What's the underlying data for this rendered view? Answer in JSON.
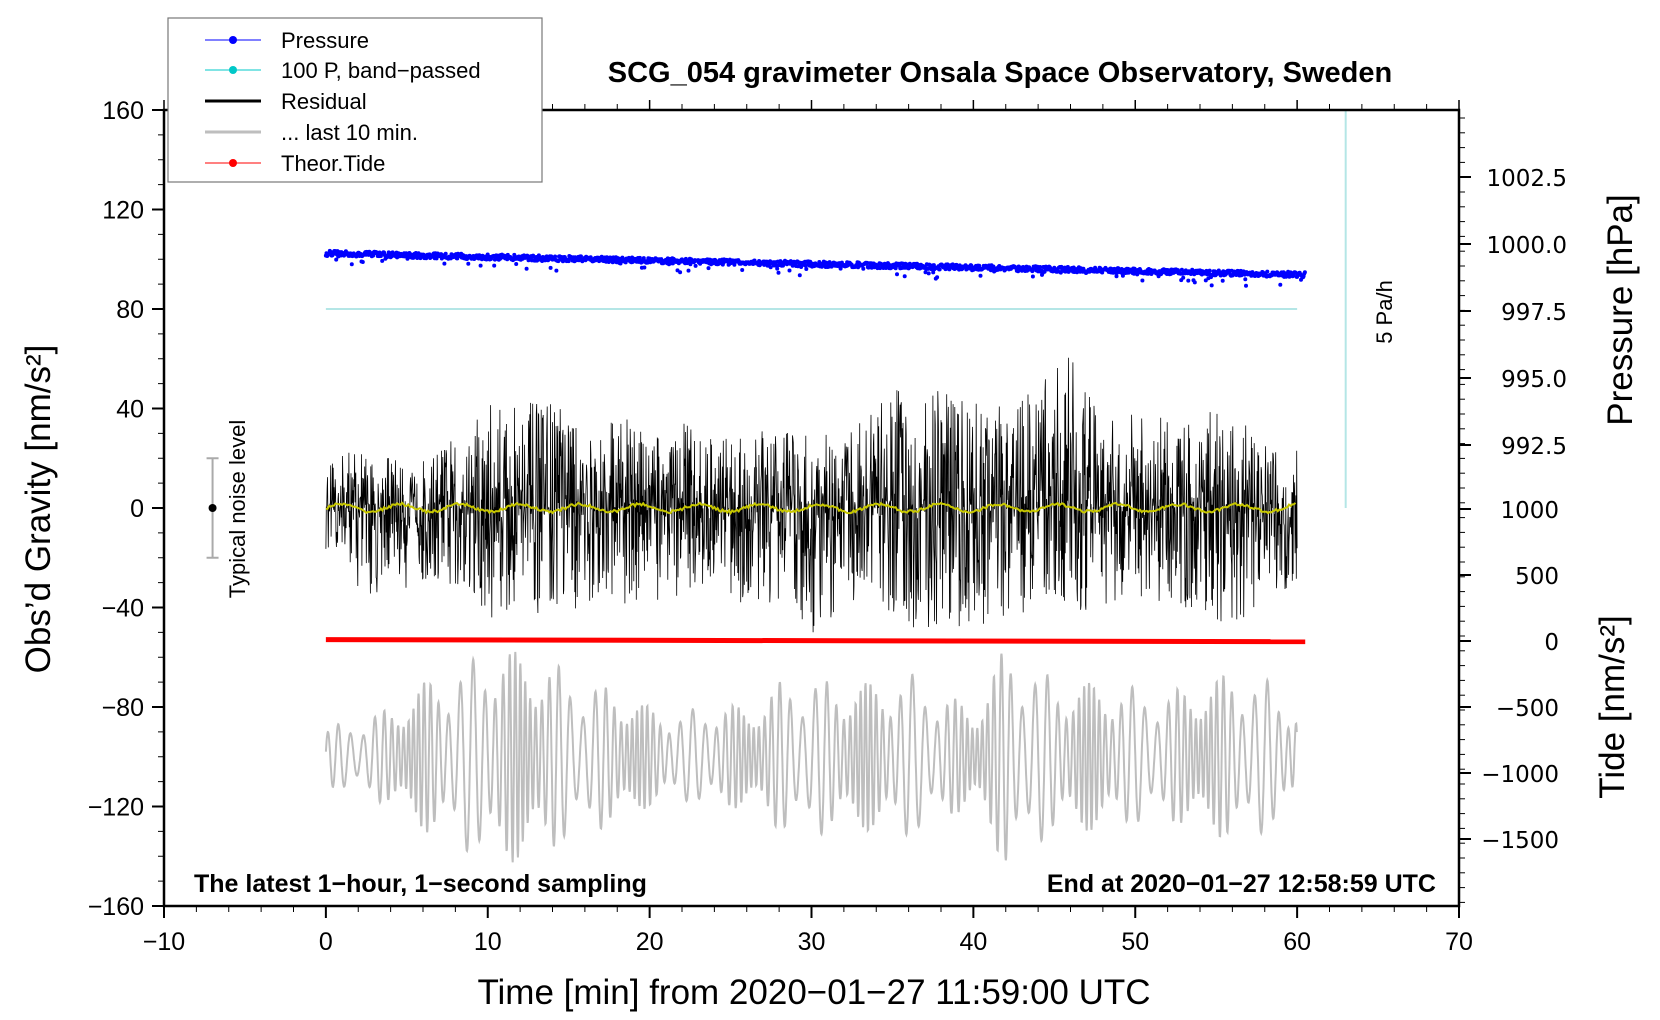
{
  "chart_data": {
    "type": "line",
    "title": "SCG_054 gravimeter Onsala Space Observatory, Sweden",
    "xlabel": "Time [min] from 2020−01−27 11:59:00 UTC",
    "ylabel": "Obs’d Gravity [nm/s²]",
    "y2label_pressure": "Pressure [hPa]",
    "y2label_tide": "Tide [nm/s²]",
    "xlim": [
      -10,
      70
    ],
    "ylim": [
      -160,
      160
    ],
    "xticks": [
      "−10",
      "0",
      "10",
      "20",
      "30",
      "40",
      "50",
      "60",
      "70"
    ],
    "xtick_values": [
      -10,
      0,
      10,
      20,
      30,
      40,
      50,
      60,
      70
    ],
    "yticks": [
      "160",
      "120",
      "80",
      "40",
      "0",
      "−40",
      "−80",
      "−120",
      "−160"
    ],
    "ytick_values": [
      160,
      120,
      80,
      40,
      0,
      -40,
      -80,
      -120,
      -160
    ],
    "pressure_axis": {
      "ticks": [
        "1002.5",
        "1000.0",
        "997.5",
        "995.0",
        "992.5"
      ],
      "values": [
        1002.5,
        1000.0,
        997.5,
        995.0,
        992.5
      ],
      "range_shown": [
        992.5,
        1003.5
      ]
    },
    "tide_axis": {
      "ticks": [
        "1000",
        "500",
        "0",
        "−500",
        "−1000",
        "−1500"
      ],
      "values": [
        1000,
        500,
        0,
        -500,
        -1000,
        -1500
      ]
    },
    "legend": {
      "placement": "top-left",
      "items": [
        {
          "label": "Pressure",
          "color": "#0000ff",
          "marker": true
        },
        {
          "label": "100 P, band−passed",
          "color": "#00c8c8",
          "marker": true
        },
        {
          "label": "Residual",
          "color": "#000000",
          "marker": false
        },
        {
          "label": "... last 10 min.",
          "color": "#bebebe",
          "marker": false
        },
        {
          "label": "Theor.Tide",
          "color": "#ff0000",
          "marker": true
        }
      ]
    },
    "annotations": {
      "left": "The latest 1−hour, 1−second sampling",
      "right": "End at 2020−01−27 12:58:59 UTC",
      "noise": "Typical noise level",
      "rate": "5 Pa/h"
    },
    "noise_level": {
      "x": -7,
      "half_range": 20
    },
    "rate_bar": {
      "x": 63,
      "from": 0,
      "to": 160
    },
    "series": [
      {
        "name": "Pressure",
        "unit": "hPa",
        "x_range": [
          0,
          60.5
        ],
        "start": 999.65,
        "end": 998.85,
        "scatter": 0.2
      },
      {
        "name": "100 P, band-passed",
        "plotted_at_gravity": 80,
        "x_range": [
          0,
          60
        ]
      },
      {
        "name": "Residual",
        "x_every_2min": [
          0,
          2,
          4,
          6,
          8,
          10,
          12,
          14,
          16,
          18,
          20,
          22,
          24,
          26,
          28,
          30,
          32,
          34,
          36,
          38,
          40,
          42,
          44,
          46,
          48,
          50,
          52,
          54,
          56,
          58,
          60
        ],
        "max": [
          18,
          25,
          20,
          20,
          30,
          43,
          42,
          43,
          30,
          38,
          30,
          35,
          28,
          28,
          35,
          28,
          32,
          40,
          57,
          48,
          45,
          40,
          50,
          62,
          40,
          38,
          37,
          40,
          40,
          25,
          25
        ],
        "min": [
          -22,
          -35,
          -38,
          -30,
          -35,
          -45,
          -40,
          -48,
          -38,
          -40,
          -38,
          -35,
          -30,
          -40,
          -40,
          -52,
          -40,
          -35,
          -52,
          -48,
          -50,
          -45,
          -42,
          -42,
          -40,
          -35,
          -40,
          -45,
          -48,
          -38,
          -32
        ],
        "mean_color": "#c8c800"
      },
      {
        "name": "... last 10 min.",
        "plotted_around_gravity": -100,
        "x_every_2min": [
          0,
          2,
          4,
          6,
          8,
          10,
          12,
          14,
          16,
          18,
          20,
          22,
          24,
          26,
          28,
          30,
          32,
          34,
          36,
          38,
          40,
          42,
          44,
          46,
          48,
          50,
          52,
          54,
          56,
          58,
          60
        ],
        "amplitude": [
          12,
          15,
          20,
          30,
          35,
          45,
          42,
          38,
          30,
          28,
          20,
          18,
          22,
          20,
          30,
          32,
          30,
          30,
          34,
          26,
          20,
          45,
          35,
          30,
          30,
          28,
          26,
          30,
          34,
          32,
          20
        ]
      },
      {
        "name": "Theor.Tide",
        "unit": "nm/s²",
        "x_range": [
          0,
          60.5
        ],
        "start": 10,
        "end": -5
      }
    ]
  }
}
